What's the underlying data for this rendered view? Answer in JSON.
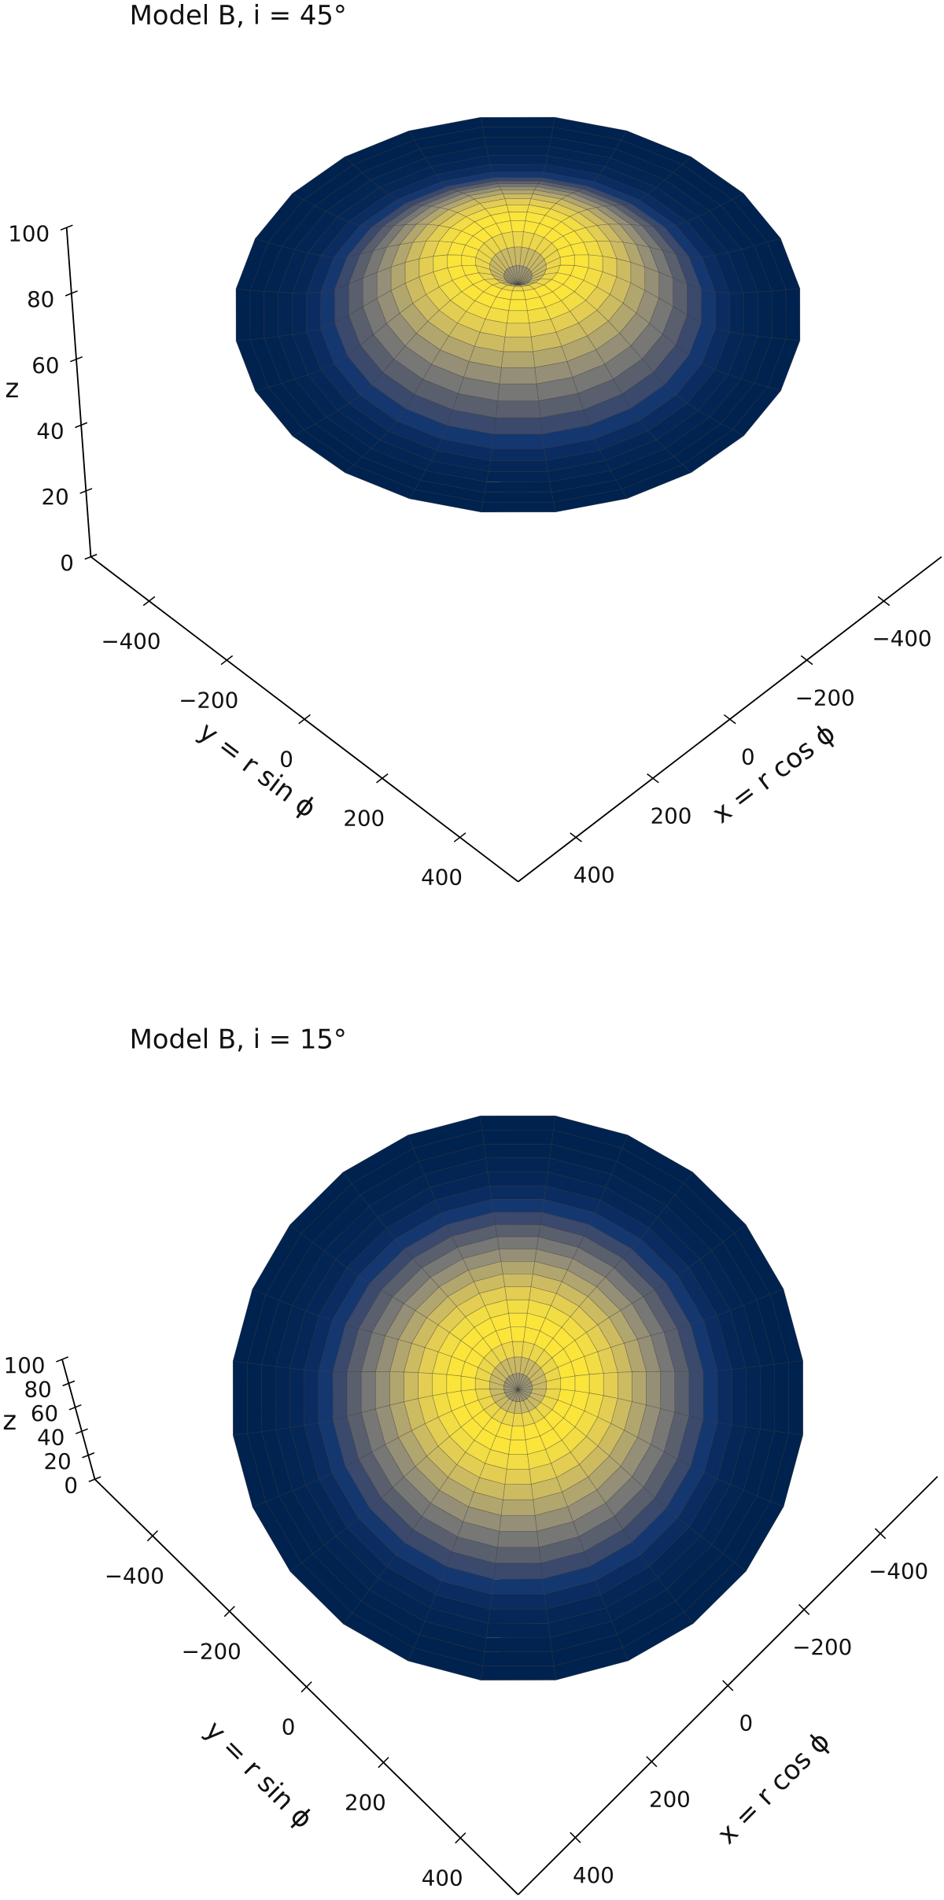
{
  "chart_data": [
    {
      "type": "surface3d",
      "title": "Model B, i = 45°",
      "xlabel": "x = r cos ϕ",
      "ylabel": "y = r sin ϕ",
      "zlabel": "z",
      "xlim": [
        -550,
        550
      ],
      "ylim": [
        -550,
        550
      ],
      "zlim": [
        0,
        100
      ],
      "xticks": [
        {
          "value": -400,
          "label": "−400"
        },
        {
          "value": -200,
          "label": "−200"
        },
        0,
        200,
        400
      ],
      "yticks": [
        {
          "value": -400,
          "label": "−400"
        },
        {
          "value": -200,
          "label": "−200"
        },
        0,
        200,
        400
      ],
      "zticks": [
        0,
        20,
        40,
        60,
        80,
        100
      ],
      "colormap": "cividis",
      "surface": {
        "r": [
          0,
          25,
          50,
          75,
          100,
          125,
          150,
          175,
          200,
          225,
          250,
          275,
          300,
          325,
          350,
          375,
          400,
          425,
          450,
          475,
          500
        ],
        "z": [
          55,
          72,
          88,
          98,
          100,
          98,
          93,
          86,
          77,
          66,
          54,
          41,
          28,
          16,
          8,
          4,
          2,
          1,
          0,
          0,
          0
        ]
      }
    },
    {
      "type": "surface3d",
      "title": "Model B, i = 15°",
      "xlabel": "x = r cos ϕ",
      "ylabel": "y = r sin ϕ",
      "zlabel": "z",
      "xlim": [
        -550,
        550
      ],
      "ylim": [
        -550,
        550
      ],
      "zlim": [
        0,
        100
      ],
      "xticks": [
        {
          "value": -400,
          "label": "−400"
        },
        {
          "value": -200,
          "label": "−200"
        },
        0,
        200,
        400
      ],
      "yticks": [
        {
          "value": -400,
          "label": "−400"
        },
        {
          "value": -200,
          "label": "−200"
        },
        0,
        200,
        400
      ],
      "zticks": [
        0,
        20,
        40,
        60,
        80,
        100
      ],
      "colormap": "cividis",
      "surface": {
        "r": [
          0,
          25,
          50,
          75,
          100,
          125,
          150,
          175,
          200,
          225,
          250,
          275,
          300,
          325,
          350,
          375,
          400,
          425,
          450,
          475,
          500
        ],
        "z": [
          55,
          72,
          88,
          98,
          100,
          98,
          93,
          86,
          77,
          66,
          54,
          41,
          28,
          16,
          8,
          4,
          2,
          1,
          0,
          0,
          0
        ]
      }
    }
  ]
}
